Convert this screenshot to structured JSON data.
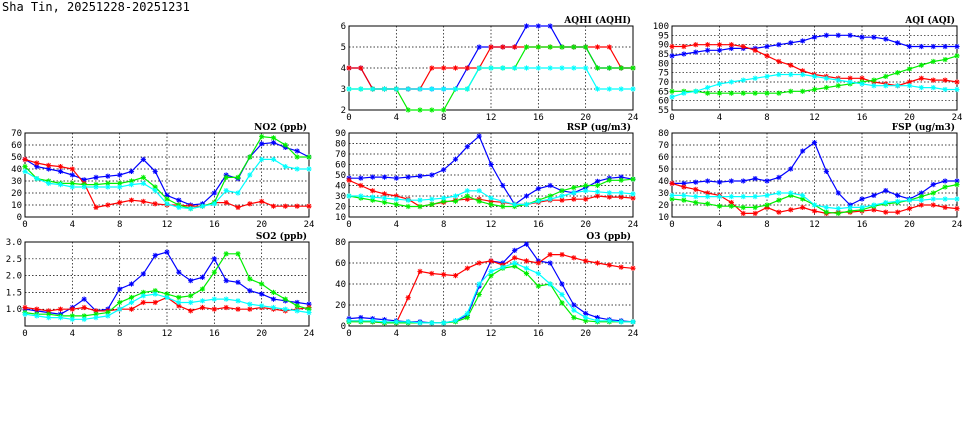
{
  "page": {
    "title": "Sha Tin, 20251228-20251231"
  },
  "colors": {
    "blue": "#0000ff",
    "red": "#ff0000",
    "green": "#00ee00",
    "cyan": "#00ffff"
  },
  "chart_data": [
    {
      "id": "aqhi",
      "type": "line",
      "title": "AQHI (AQHI)",
      "xlim": [
        0,
        24
      ],
      "xticks": [
        0,
        4,
        8,
        12,
        16,
        20,
        24
      ],
      "ylim": [
        2,
        6
      ],
      "yticks": [
        2,
        3,
        4,
        5,
        6
      ],
      "grid": true,
      "series": [
        {
          "color": "blue",
          "values": [
            4,
            4,
            3,
            3,
            3,
            3,
            3,
            3,
            3,
            3,
            4,
            5,
            5,
            5,
            5,
            6,
            6,
            6,
            5,
            5,
            5,
            4,
            4,
            4,
            4
          ]
        },
        {
          "color": "red",
          "values": [
            4,
            4,
            3,
            3,
            3,
            3,
            3,
            4,
            4,
            4,
            4,
            4,
            5,
            5,
            5,
            5,
            5,
            5,
            5,
            5,
            5,
            5,
            5,
            4,
            4
          ]
        },
        {
          "color": "green",
          "values": [
            3,
            3,
            3,
            3,
            3,
            2,
            2,
            2,
            2,
            3,
            3,
            4,
            4,
            4,
            4,
            5,
            5,
            5,
            5,
            5,
            5,
            4,
            4,
            4,
            4
          ]
        },
        {
          "color": "cyan",
          "values": [
            3,
            3,
            3,
            3,
            3,
            3,
            3,
            3,
            3,
            3,
            3,
            4,
            4,
            4,
            4,
            4,
            4,
            4,
            4,
            4,
            4,
            3,
            3,
            3,
            3
          ]
        }
      ]
    },
    {
      "id": "aqi",
      "type": "line",
      "title": "AQI (AQI)",
      "xlim": [
        0,
        24
      ],
      "xticks": [
        0,
        4,
        8,
        12,
        16,
        20,
        24
      ],
      "ylim": [
        55,
        100
      ],
      "yticks": [
        55,
        60,
        65,
        70,
        75,
        80,
        85,
        90,
        95,
        100
      ],
      "grid": true,
      "series": [
        {
          "color": "blue",
          "values": [
            84,
            85,
            86,
            87,
            87,
            88,
            88,
            88,
            89,
            90,
            91,
            92,
            94,
            95,
            95,
            95,
            94,
            94,
            93,
            91,
            89,
            89,
            89,
            89,
            89
          ]
        },
        {
          "color": "red",
          "values": [
            89,
            89,
            90,
            90,
            90,
            90,
            89,
            87,
            84,
            81,
            79,
            76,
            74,
            73,
            72,
            72,
            72,
            70,
            69,
            68,
            70,
            72,
            71,
            71,
            70
          ]
        },
        {
          "color": "green",
          "values": [
            65,
            65,
            65,
            64,
            64,
            64,
            64,
            64,
            64,
            64,
            65,
            65,
            66,
            67,
            68,
            69,
            70,
            71,
            73,
            75,
            77,
            79,
            81,
            82,
            84
          ]
        },
        {
          "color": "cyan",
          "values": [
            62,
            64,
            65,
            67,
            69,
            70,
            71,
            72,
            73,
            74,
            74,
            74,
            73,
            72,
            71,
            70,
            69,
            68,
            68,
            68,
            68,
            67,
            67,
            66,
            66
          ]
        }
      ]
    },
    {
      "id": "no2",
      "type": "line",
      "title": "NO2 (ppb)",
      "xlim": [
        0,
        24
      ],
      "xticks": [
        0,
        4,
        8,
        12,
        16,
        20,
        24
      ],
      "ylim": [
        0,
        70
      ],
      "yticks": [
        0,
        10,
        20,
        30,
        40,
        50,
        60,
        70
      ],
      "grid": true,
      "series": [
        {
          "color": "blue",
          "values": [
            48,
            42,
            40,
            38,
            35,
            31,
            33,
            34,
            35,
            38,
            48,
            38,
            18,
            14,
            10,
            11,
            20,
            35,
            32,
            50,
            61,
            62,
            58,
            55,
            50
          ]
        },
        {
          "color": "red",
          "values": [
            48,
            45,
            43,
            42,
            40,
            28,
            8,
            10,
            12,
            14,
            13,
            11,
            10,
            10,
            9,
            9,
            12,
            12,
            8,
            11,
            13,
            9,
            9,
            9,
            9
          ]
        },
        {
          "color": "green",
          "values": [
            42,
            32,
            30,
            28,
            28,
            27,
            27,
            28,
            28,
            30,
            33,
            25,
            15,
            10,
            7,
            9,
            12,
            33,
            33,
            50,
            67,
            66,
            60,
            50,
            50
          ]
        },
        {
          "color": "cyan",
          "values": [
            38,
            32,
            28,
            27,
            25,
            25,
            25,
            25,
            25,
            27,
            28,
            22,
            11,
            8,
            7,
            9,
            11,
            22,
            20,
            35,
            48,
            48,
            42,
            40,
            40
          ]
        }
      ]
    },
    {
      "id": "rsp",
      "type": "line",
      "title": "RSP (ug/m3)",
      "xlim": [
        0,
        24
      ],
      "xticks": [
        0,
        4,
        8,
        12,
        16,
        20,
        24
      ],
      "ylim": [
        10,
        90
      ],
      "yticks": [
        10,
        20,
        30,
        40,
        50,
        60,
        70,
        80,
        90
      ],
      "grid": true,
      "series": [
        {
          "color": "blue",
          "values": [
            47,
            47,
            48,
            48,
            47,
            48,
            49,
            50,
            55,
            65,
            77,
            87,
            60,
            40,
            22,
            30,
            37,
            40,
            35,
            33,
            38,
            44,
            47,
            48,
            46
          ]
        },
        {
          "color": "red",
          "values": [
            45,
            40,
            35,
            32,
            30,
            27,
            20,
            22,
            24,
            26,
            27,
            27,
            25,
            24,
            22,
            22,
            24,
            26,
            26,
            27,
            27,
            30,
            29,
            29,
            28
          ]
        },
        {
          "color": "green",
          "values": [
            30,
            28,
            26,
            24,
            22,
            20,
            20,
            22,
            25,
            25,
            30,
            25,
            22,
            20,
            20,
            22,
            26,
            30,
            35,
            38,
            40,
            40,
            45,
            45,
            46
          ]
        },
        {
          "color": "cyan",
          "values": [
            30,
            30,
            29,
            28,
            27,
            26,
            26,
            27,
            28,
            30,
            35,
            35,
            28,
            25,
            22,
            22,
            25,
            27,
            30,
            33,
            35,
            34,
            33,
            33,
            32
          ]
        }
      ]
    },
    {
      "id": "fsp",
      "type": "line",
      "title": "FSP (ug/m3)",
      "xlim": [
        0,
        24
      ],
      "xticks": [
        0,
        4,
        8,
        12,
        16,
        20,
        24
      ],
      "ylim": [
        10,
        80
      ],
      "yticks": [
        10,
        20,
        30,
        40,
        50,
        60,
        70,
        80
      ],
      "grid": true,
      "series": [
        {
          "color": "blue",
          "values": [
            38,
            38,
            39,
            40,
            39,
            40,
            40,
            42,
            40,
            43,
            50,
            65,
            72,
            48,
            30,
            20,
            25,
            28,
            32,
            28,
            25,
            30,
            37,
            40,
            40
          ]
        },
        {
          "color": "red",
          "values": [
            38,
            35,
            33,
            30,
            28,
            22,
            13,
            13,
            18,
            14,
            16,
            18,
            15,
            13,
            14,
            14,
            15,
            16,
            14,
            14,
            17,
            20,
            20,
            18,
            17
          ]
        },
        {
          "color": "green",
          "values": [
            25,
            24,
            22,
            21,
            19,
            19,
            18,
            18,
            20,
            24,
            28,
            25,
            20,
            14,
            13,
            15,
            16,
            19,
            21,
            22,
            24,
            27,
            30,
            35,
            37
          ]
        },
        {
          "color": "cyan",
          "values": [
            28,
            28,
            27,
            27,
            27,
            27,
            27,
            27,
            28,
            30,
            30,
            28,
            20,
            18,
            17,
            18,
            18,
            20,
            22,
            23,
            24,
            24,
            25,
            25,
            25
          ]
        }
      ]
    },
    {
      "id": "so2",
      "type": "line",
      "title": "SO2 (ppb)",
      "xlim": [
        0,
        24
      ],
      "xticks": [
        0,
        4,
        8,
        12,
        16,
        20,
        24
      ],
      "ylim": [
        0.5,
        3.0
      ],
      "yticks": [
        1.0,
        1.5,
        2.0,
        2.5,
        3.0
      ],
      "ytick_labels": [
        "1.0",
        "1.5",
        "2.0",
        "2.5",
        "3.0"
      ],
      "grid": true,
      "series": [
        {
          "color": "blue",
          "values": [
            1.0,
            0.95,
            0.9,
            0.85,
            1.05,
            1.3,
            0.95,
            1.0,
            1.6,
            1.75,
            2.05,
            2.6,
            2.7,
            2.1,
            1.85,
            1.95,
            2.5,
            1.85,
            1.8,
            1.55,
            1.45,
            1.3,
            1.25,
            1.2,
            1.15
          ]
        },
        {
          "color": "red",
          "values": [
            1.05,
            1.0,
            0.95,
            1.0,
            1.0,
            1.05,
            0.95,
            0.95,
            1.0,
            1.0,
            1.2,
            1.2,
            1.35,
            1.1,
            0.95,
            1.05,
            1.0,
            1.05,
            1.0,
            1.0,
            1.05,
            1.0,
            0.95,
            1.0,
            1.05
          ]
        },
        {
          "color": "green",
          "values": [
            0.9,
            0.85,
            0.85,
            0.8,
            0.8,
            0.8,
            0.85,
            0.9,
            1.2,
            1.35,
            1.5,
            1.55,
            1.45,
            1.35,
            1.4,
            1.6,
            2.1,
            2.65,
            2.65,
            1.9,
            1.75,
            1.5,
            1.3,
            1.1,
            1.0
          ]
        },
        {
          "color": "cyan",
          "values": [
            0.85,
            0.8,
            0.75,
            0.75,
            0.7,
            0.7,
            0.75,
            0.8,
            1.0,
            1.2,
            1.4,
            1.45,
            1.35,
            1.2,
            1.2,
            1.25,
            1.3,
            1.3,
            1.25,
            1.15,
            1.1,
            1.05,
            1.0,
            0.95,
            0.9
          ]
        }
      ]
    },
    {
      "id": "o3",
      "type": "line",
      "title": "O3 (ppb)",
      "xlim": [
        0,
        24
      ],
      "xticks": [
        0,
        4,
        8,
        12,
        16,
        20,
        24
      ],
      "ylim": [
        0,
        80
      ],
      "yticks": [
        0,
        20,
        40,
        60,
        80
      ],
      "grid": true,
      "series": [
        {
          "color": "blue",
          "values": [
            7,
            8,
            7,
            6,
            5,
            4,
            4,
            3,
            3,
            5,
            10,
            38,
            62,
            60,
            72,
            78,
            62,
            60,
            40,
            20,
            12,
            8,
            6,
            5,
            4
          ]
        },
        {
          "color": "red",
          "values": [
            5,
            5,
            4,
            3,
            3,
            27,
            52,
            50,
            49,
            48,
            55,
            60,
            62,
            58,
            65,
            62,
            60,
            68,
            68,
            65,
            62,
            60,
            58,
            56,
            55
          ]
        },
        {
          "color": "green",
          "values": [
            4,
            4,
            4,
            3,
            3,
            3,
            3,
            3,
            3,
            4,
            8,
            30,
            48,
            55,
            57,
            50,
            38,
            40,
            22,
            8,
            5,
            4,
            4,
            4,
            4
          ]
        },
        {
          "color": "cyan",
          "values": [
            5,
            5,
            5,
            4,
            4,
            4,
            3,
            3,
            3,
            5,
            12,
            40,
            52,
            56,
            60,
            55,
            50,
            40,
            30,
            15,
            8,
            5,
            5,
            4,
            4
          ]
        }
      ]
    }
  ]
}
